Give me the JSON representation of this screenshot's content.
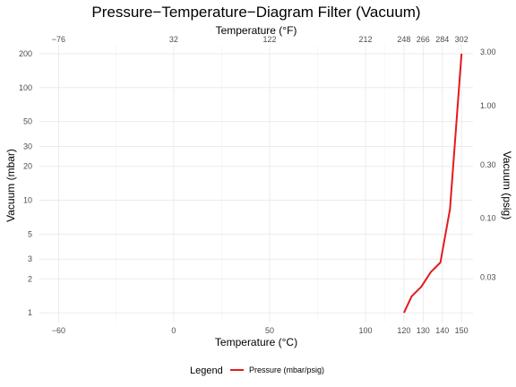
{
  "chart_data": {
    "type": "line",
    "title": "Pressure−Temperature−Diagram Filter (Vacuum)",
    "xlabel": "Temperature (°C)",
    "ylabel": "Vacuum (mbar)",
    "x2label": "Temperature (°F)",
    "y2label": "Vacuum (psig)",
    "xlim": [
      -70,
      156
    ],
    "ylim": [
      0.82,
      240
    ],
    "yscale": "log",
    "grid": true,
    "x_ticks": [
      -60,
      0,
      50,
      100,
      120,
      130,
      140,
      150
    ],
    "x_tick_labels": [
      "−60",
      "0",
      "50",
      "100",
      "120",
      "130",
      "140",
      "150"
    ],
    "x_minor_ticks": [
      -30,
      25,
      75,
      110
    ],
    "x2_ticks": [
      -60,
      0,
      50,
      100,
      120,
      130,
      140,
      150
    ],
    "x2_tick_labels": [
      "−76",
      "32",
      "122",
      "212",
      "248",
      "266",
      "284",
      "302"
    ],
    "y_ticks": [
      1,
      2,
      3,
      5,
      10,
      20,
      30,
      50,
      100,
      200
    ],
    "y_tick_labels": [
      "1",
      "2",
      "3",
      "5",
      "10",
      "20",
      "30",
      "50",
      "100",
      "200"
    ],
    "y2_ticks": [
      2.07,
      6.9,
      20.7,
      69,
      207
    ],
    "y2_tick_labels": [
      "0.03",
      "0.10",
      "0.30",
      "1.00",
      "3.00"
    ],
    "series": [
      {
        "name": "Pressure (mbar/psig)",
        "color": "#e41a1c",
        "x": [
          120,
          124,
          129,
          134,
          139,
          144,
          150
        ],
        "y": [
          1.0,
          1.4,
          1.7,
          2.3,
          2.8,
          8.3,
          200
        ]
      }
    ],
    "legend": {
      "title": "Legend",
      "position": "bottom"
    }
  }
}
